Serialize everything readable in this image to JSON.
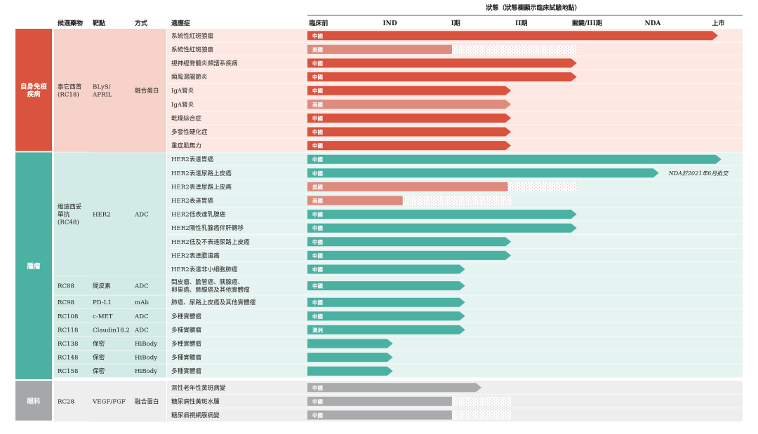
{
  "header": {
    "status_title": "狀態（狀態欄顯示臨床試驗地點）",
    "col_candidate": "候選藥物",
    "col_target": "靶點",
    "col_modality": "方式",
    "col_indication": "適應症"
  },
  "chart_data": {
    "type": "bar",
    "orientation": "horizontal",
    "stage_labels": [
      "臨床前",
      "IND",
      "I期",
      "II期",
      "關鍵/III期",
      "NDA",
      "上市"
    ],
    "colors": {
      "autoimmune": "#d9533f",
      "autoimmune_light": "#df8b7e",
      "autoimmune_bg": "#fde8e3",
      "autoimmune_group_bg": "#f7d2c8",
      "oncology": "#4ab1a3",
      "oncology_light": "#de8a7c",
      "oncology_bg": "#e6f4f1",
      "oncology_group_bg": "#d2ebe6",
      "ophthalmology": "#aaabad",
      "ophthalmology_bg": "#eeeeee"
    },
    "categories": [
      {
        "name": "自身免疫疾病",
        "color": "#d9533f",
        "row_start": 0,
        "row_count": 9
      },
      {
        "name": "腫瘤",
        "color": "#4ab1a3",
        "row_start": 9,
        "row_count": 17
      },
      {
        "name": "眼科",
        "color": "#a6a7a9",
        "row_start": 26,
        "row_count": 3
      }
    ],
    "drug_groups": [
      {
        "name": "泰它西普\n(RC18)",
        "target": "BLyS/\nAPRIL",
        "modality": "融合蛋白",
        "row_start": 0,
        "row_count": 9,
        "theme": "autoimmune"
      },
      {
        "name": "維迪西妥\n單抗\n(RC48)",
        "target": "HER2",
        "modality": "ADC",
        "row_start": 9,
        "row_count": 9,
        "theme": "oncology"
      },
      {
        "name": "RC88",
        "target": "間皮素",
        "modality": "ADC",
        "row_start": 18,
        "row_count": 1,
        "theme": "oncology"
      },
      {
        "name": "RC98",
        "target": "PD-L1",
        "modality": "mAb",
        "row_start": 19,
        "row_count": 1,
        "theme": "oncology"
      },
      {
        "name": "RC108",
        "target": "c-MET",
        "modality": "ADC",
        "row_start": 20,
        "row_count": 1,
        "theme": "oncology"
      },
      {
        "name": "RC118",
        "target": "Claudin18.2",
        "modality": "ADC",
        "row_start": 21,
        "row_count": 1,
        "theme": "oncology"
      },
      {
        "name": "RC138",
        "target": "保密",
        "modality": "HiBody",
        "row_start": 22,
        "row_count": 1,
        "theme": "oncology"
      },
      {
        "name": "RC148",
        "target": "保密",
        "modality": "HiBody",
        "row_start": 23,
        "row_count": 1,
        "theme": "oncology"
      },
      {
        "name": "RC158",
        "target": "保密",
        "modality": "HiBody",
        "row_start": 24,
        "row_count": 1,
        "theme": "oncology"
      },
      {
        "name": "RC28",
        "target": "VEGF/FGF",
        "modality": "融合蛋白",
        "row_start": 26,
        "row_count": 3,
        "theme": "ophthalmology"
      }
    ],
    "rows": [
      {
        "indication": "系統性紅斑狼瘡",
        "region": "中國",
        "progress": 6.25,
        "arrow": true,
        "dotted_to": null,
        "theme": "autoimmune",
        "light": false
      },
      {
        "indication": "系統性紅斑狼瘡",
        "region": "美國",
        "progress": 2.2,
        "arrow": false,
        "dotted_to": 4.1,
        "theme": "autoimmune",
        "light": true
      },
      {
        "indication": "視神經脊髓炎頻譜系疾病",
        "region": "中國",
        "progress": 4.1,
        "arrow": true,
        "dotted_to": null,
        "theme": "autoimmune",
        "light": false
      },
      {
        "indication": "類風濕關節炎",
        "region": "中國",
        "progress": 4.1,
        "arrow": true,
        "dotted_to": null,
        "theme": "autoimmune",
        "light": false
      },
      {
        "indication": "IgA腎炎",
        "region": "中國",
        "progress": 3.1,
        "arrow": true,
        "dotted_to": null,
        "theme": "autoimmune",
        "light": false
      },
      {
        "indication": "IgA腎炎",
        "region": "美國",
        "progress": 3.1,
        "arrow": true,
        "dotted_to": null,
        "theme": "autoimmune",
        "light": true
      },
      {
        "indication": "乾燥綜合症",
        "region": "中國",
        "progress": 3.1,
        "arrow": true,
        "dotted_to": null,
        "theme": "autoimmune",
        "light": false
      },
      {
        "indication": "多發性硬化症",
        "region": "中國",
        "progress": 3.1,
        "arrow": true,
        "dotted_to": null,
        "theme": "autoimmune",
        "light": false
      },
      {
        "indication": "重症肌無力",
        "region": "中國",
        "progress": 3.1,
        "arrow": true,
        "dotted_to": null,
        "theme": "autoimmune",
        "light": false
      },
      {
        "indication": "HER2表達胃癌",
        "region": "中國",
        "progress": 6.3,
        "arrow": true,
        "dotted_to": null,
        "theme": "oncology",
        "light": false
      },
      {
        "indication": "HER2表達尿路上皮癌",
        "region": "中國",
        "progress": 5.35,
        "arrow": true,
        "dotted_to": null,
        "theme": "oncology",
        "light": false,
        "note": "NDA於2021年6月批交"
      },
      {
        "indication": "HER2表達尿路上皮癌",
        "region": "美國",
        "progress": 3.05,
        "arrow": false,
        "dotted_to": 4.1,
        "theme": "oncology",
        "light": true
      },
      {
        "indication": "HER2表達胃癌",
        "region": "美國",
        "progress": 1.45,
        "arrow": false,
        "dotted_to": 3.1,
        "theme": "oncology",
        "light": true
      },
      {
        "indication": "HER2低表達乳腺癌",
        "region": "中國",
        "progress": 4.1,
        "arrow": true,
        "dotted_to": null,
        "theme": "oncology",
        "light": false
      },
      {
        "indication": "HER2陽性乳腺癌伴肝轉移",
        "region": "中國",
        "progress": 4.1,
        "arrow": true,
        "dotted_to": null,
        "theme": "oncology",
        "light": false
      },
      {
        "indication": "HER2低及不表達尿路上皮癌",
        "region": "中國",
        "progress": 3.1,
        "arrow": true,
        "dotted_to": null,
        "theme": "oncology",
        "light": false
      },
      {
        "indication": "HER2表達膽道癌",
        "region": "中國",
        "progress": 3.1,
        "arrow": true,
        "dotted_to": null,
        "theme": "oncology",
        "light": false
      },
      {
        "indication": "HER2表達非小細胞肺癌",
        "region": "中國",
        "progress": 2.4,
        "arrow": true,
        "dotted_to": null,
        "theme": "oncology",
        "light": false
      },
      {
        "indication": "間皮瘤、膽管癌、胰腺癌、\n卵巢癌、肺腺癌及其他實體瘤",
        "region": "中國",
        "progress": 2.4,
        "arrow": true,
        "dotted_to": null,
        "theme": "oncology",
        "light": false,
        "double": true
      },
      {
        "indication": "肺癌、尿路上皮癌及其他實體瘤",
        "region": "中國",
        "progress": 2.4,
        "arrow": true,
        "dotted_to": null,
        "theme": "oncology",
        "light": false
      },
      {
        "indication": "多種實體瘤",
        "region": "中國",
        "progress": 2.4,
        "arrow": true,
        "dotted_to": null,
        "theme": "oncology",
        "light": false
      },
      {
        "indication": "多種實體瘤",
        "region": "澳洲",
        "progress": 2.4,
        "arrow": true,
        "dotted_to": null,
        "theme": "oncology",
        "light": false
      },
      {
        "indication": "多種實體瘤",
        "region": "",
        "progress": 1.3,
        "arrow": true,
        "dotted_to": null,
        "theme": "oncology",
        "light": false
      },
      {
        "indication": "多種實體瘤",
        "region": "",
        "progress": 1.3,
        "arrow": true,
        "dotted_to": null,
        "theme": "oncology",
        "light": false
      },
      {
        "indication": "多種實體瘤",
        "region": "",
        "progress": 1.3,
        "arrow": true,
        "dotted_to": null,
        "theme": "oncology",
        "light": false
      },
      {
        "indication": "",
        "region": "",
        "progress": 0,
        "arrow": false,
        "dotted_to": null,
        "theme": "oncology",
        "light": false,
        "separator": true
      },
      {
        "indication": "濕性老年性黃斑病變",
        "region": "中國",
        "progress": 2.65,
        "arrow": true,
        "dotted_to": null,
        "theme": "ophthalmology",
        "light": false
      },
      {
        "indication": "糖尿病性黃斑水腫",
        "region": "中國",
        "progress": 2.2,
        "arrow": false,
        "dotted_to": 3.1,
        "theme": "ophthalmology",
        "light": false
      },
      {
        "indication": "糖尿病視網膜病變",
        "region": "中國",
        "progress": 2.2,
        "arrow": false,
        "dotted_to": 3.1,
        "theme": "ophthalmology",
        "light": false
      }
    ]
  }
}
